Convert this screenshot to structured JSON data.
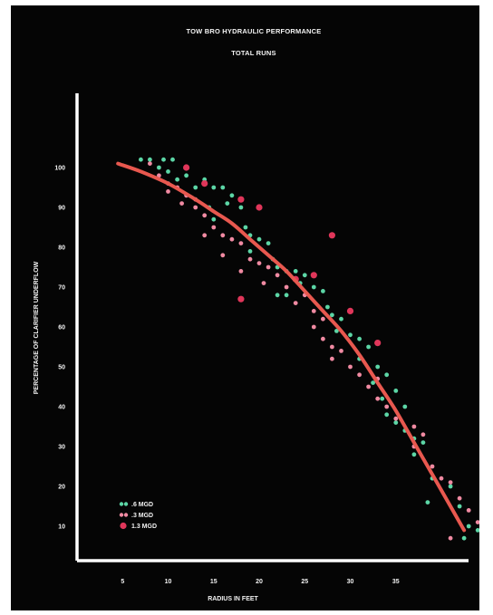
{
  "chart_data": {
    "type": "scatter",
    "title": "TOW BRO HYDRAULIC PERFORMANCE",
    "subtitle": "TOTAL RUNS",
    "xlabel": "RADIUS IN FEET",
    "ylabel": "PERCENTAGE OF CLARIFIER UNDERFLOW",
    "xlim": [
      0,
      43
    ],
    "ylim": [
      4,
      104
    ],
    "x_ticks": [
      "5",
      "10",
      "15",
      "20",
      "25",
      "30",
      "35"
    ],
    "x_tick_values": [
      5,
      10,
      15,
      20,
      25,
      30,
      35
    ],
    "y_ticks": [
      "10",
      "20",
      "30",
      "40",
      "50",
      "60",
      "70",
      "80",
      "90",
      "100"
    ],
    "y_tick_values": [
      10,
      20,
      30,
      40,
      50,
      60,
      70,
      80,
      90,
      100
    ],
    "grid": false,
    "legend_position": "bottom-left",
    "colors": {
      "background": "#050505",
      "axis": "#ffffff",
      "text": "#f2f2f2",
      "curve": "#e8584f",
      "s1": "#5cd6a6",
      "s2": "#f08aa2",
      "s3": "#e0365a"
    },
    "series": [
      {
        "name": ".6 MGD",
        "color_key": "s1",
        "marker": "dot",
        "points": [
          [
            7,
            102
          ],
          [
            8,
            102
          ],
          [
            9.5,
            102
          ],
          [
            10.5,
            102
          ],
          [
            9,
            100
          ],
          [
            10,
            99
          ],
          [
            11,
            97
          ],
          [
            12,
            98
          ],
          [
            13,
            95
          ],
          [
            14,
            97
          ],
          [
            15,
            95
          ],
          [
            16,
            95
          ],
          [
            17,
            93
          ],
          [
            14.5,
            90
          ],
          [
            16.5,
            91
          ],
          [
            18,
            90
          ],
          [
            15,
            87
          ],
          [
            18.5,
            85
          ],
          [
            19,
            83
          ],
          [
            20,
            82
          ],
          [
            21,
            81
          ],
          [
            19,
            79
          ],
          [
            21.5,
            77
          ],
          [
            22,
            75
          ],
          [
            23,
            74
          ],
          [
            24,
            74
          ],
          [
            25,
            73
          ],
          [
            24.5,
            71
          ],
          [
            26,
            70
          ],
          [
            27,
            69
          ],
          [
            22,
            68
          ],
          [
            23,
            68
          ],
          [
            27.5,
            65
          ],
          [
            28,
            63
          ],
          [
            29,
            62
          ],
          [
            28.5,
            59
          ],
          [
            30,
            58
          ],
          [
            31,
            57
          ],
          [
            32,
            55
          ],
          [
            31,
            52
          ],
          [
            33,
            50
          ],
          [
            34,
            48
          ],
          [
            32.5,
            46
          ],
          [
            35,
            44
          ],
          [
            33.5,
            42
          ],
          [
            36,
            40
          ],
          [
            34,
            38
          ],
          [
            35,
            36
          ],
          [
            36,
            34
          ],
          [
            37,
            32
          ],
          [
            38,
            31
          ],
          [
            37,
            28
          ],
          [
            39,
            22
          ],
          [
            38.5,
            16
          ],
          [
            41,
            20
          ],
          [
            42,
            15
          ],
          [
            43,
            10
          ],
          [
            44,
            9
          ],
          [
            42.5,
            7
          ]
        ]
      },
      {
        "name": ".3 MGD",
        "color_key": "s2",
        "marker": "dot",
        "points": [
          [
            8,
            101
          ],
          [
            9,
            98
          ],
          [
            10,
            96
          ],
          [
            11,
            95
          ],
          [
            12,
            93
          ],
          [
            13,
            92
          ],
          [
            10,
            94
          ],
          [
            11.5,
            91
          ],
          [
            13,
            90
          ],
          [
            14,
            88
          ],
          [
            15,
            85
          ],
          [
            16,
            83
          ],
          [
            17,
            82
          ],
          [
            18,
            81
          ],
          [
            14,
            83
          ],
          [
            16,
            78
          ],
          [
            18,
            74
          ],
          [
            19,
            77
          ],
          [
            20,
            76
          ],
          [
            21,
            75
          ],
          [
            22,
            73
          ],
          [
            20.5,
            71
          ],
          [
            23,
            70
          ],
          [
            25,
            68
          ],
          [
            24,
            66
          ],
          [
            26,
            64
          ],
          [
            27,
            62
          ],
          [
            26,
            60
          ],
          [
            27,
            57
          ],
          [
            28,
            55
          ],
          [
            29,
            54
          ],
          [
            28,
            52
          ],
          [
            30,
            50
          ],
          [
            31,
            48
          ],
          [
            33,
            47
          ],
          [
            32,
            45
          ],
          [
            33,
            42
          ],
          [
            34,
            40
          ],
          [
            35,
            37
          ],
          [
            37,
            35
          ],
          [
            38,
            33
          ],
          [
            37,
            30
          ],
          [
            39,
            25
          ],
          [
            40,
            22
          ],
          [
            41,
            21
          ],
          [
            42,
            17
          ],
          [
            43,
            14
          ],
          [
            44,
            11
          ],
          [
            41,
            7
          ]
        ]
      },
      {
        "name": "1.3 MGD",
        "color_key": "s3",
        "marker": "dot-large",
        "points": [
          [
            12,
            100
          ],
          [
            14,
            96
          ],
          [
            18,
            92
          ],
          [
            20,
            90
          ],
          [
            24,
            72
          ],
          [
            26,
            73
          ],
          [
            28,
            83
          ],
          [
            30,
            64
          ],
          [
            18,
            67
          ],
          [
            33,
            56
          ]
        ]
      }
    ],
    "fit_curve": {
      "color_key": "curve",
      "points": [
        [
          4.5,
          101
        ],
        [
          7,
          99
        ],
        [
          10,
          96
        ],
        [
          13,
          92
        ],
        [
          15,
          89
        ],
        [
          17,
          86
        ],
        [
          19,
          82
        ],
        [
          21,
          78
        ],
        [
          23,
          74
        ],
        [
          25,
          69
        ],
        [
          27,
          64
        ],
        [
          29,
          59
        ],
        [
          31,
          53
        ],
        [
          33,
          46
        ],
        [
          35,
          39
        ],
        [
          37,
          31
        ],
        [
          39,
          23
        ],
        [
          41,
          15
        ],
        [
          42.5,
          9
        ]
      ]
    }
  }
}
